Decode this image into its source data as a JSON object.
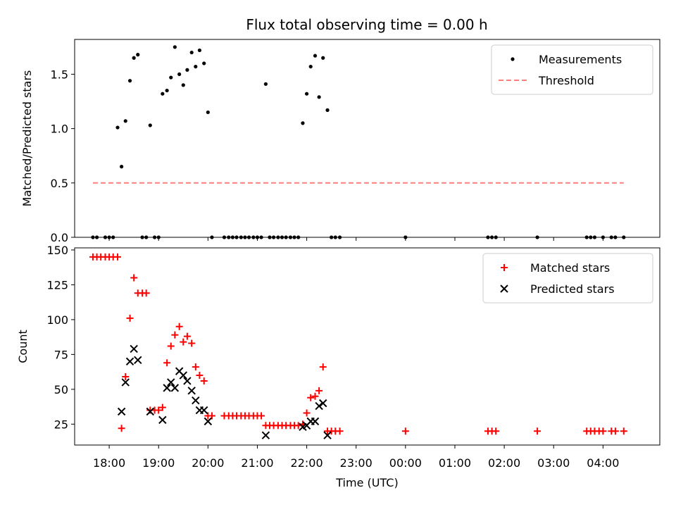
{
  "chart_data": [
    {
      "type": "scatter",
      "title": "Flux total observing time = 0.00 h",
      "xlabel": "",
      "ylabel": "Matched/Predicted stars",
      "ylim": [
        0,
        1.82
      ],
      "yticks": [
        "0.0",
        "0.5",
        "1.0",
        "1.5"
      ],
      "ytick_values": [
        0,
        0.5,
        1.0,
        1.5
      ],
      "xlim": [
        17.3,
        29.15
      ],
      "legend_placement": "top-right",
      "series": [
        {
          "name": "Measurements",
          "marker": "dot",
          "color": "#000000",
          "points": [
            [
              17.67,
              0
            ],
            [
              17.75,
              0
            ],
            [
              17.92,
              0
            ],
            [
              18.0,
              0
            ],
            [
              18.08,
              0
            ],
            [
              18.17,
              1.01
            ],
            [
              18.25,
              0.65
            ],
            [
              18.33,
              1.07
            ],
            [
              18.42,
              1.44
            ],
            [
              18.5,
              1.65
            ],
            [
              18.58,
              1.68
            ],
            [
              18.67,
              0
            ],
            [
              18.75,
              0
            ],
            [
              18.83,
              1.03
            ],
            [
              18.92,
              0
            ],
            [
              19.0,
              0
            ],
            [
              19.08,
              1.32
            ],
            [
              19.17,
              1.35
            ],
            [
              19.25,
              1.47
            ],
            [
              19.33,
              1.75
            ],
            [
              19.42,
              1.5
            ],
            [
              19.5,
              1.4
            ],
            [
              19.58,
              1.54
            ],
            [
              19.67,
              1.7
            ],
            [
              19.75,
              1.57
            ],
            [
              19.83,
              1.72
            ],
            [
              19.92,
              1.6
            ],
            [
              20.0,
              1.15
            ],
            [
              20.08,
              0
            ],
            [
              20.33,
              0
            ],
            [
              20.42,
              0
            ],
            [
              20.5,
              0
            ],
            [
              20.58,
              0
            ],
            [
              20.67,
              0
            ],
            [
              20.75,
              0
            ],
            [
              20.83,
              0
            ],
            [
              20.92,
              0
            ],
            [
              21.0,
              0
            ],
            [
              21.08,
              0
            ],
            [
              21.17,
              1.41
            ],
            [
              21.25,
              0
            ],
            [
              21.33,
              0
            ],
            [
              21.42,
              0
            ],
            [
              21.5,
              0
            ],
            [
              21.58,
              0
            ],
            [
              21.67,
              0
            ],
            [
              21.75,
              0
            ],
            [
              21.83,
              0
            ],
            [
              21.92,
              1.05
            ],
            [
              22.0,
              1.32
            ],
            [
              22.08,
              1.57
            ],
            [
              22.17,
              1.67
            ],
            [
              22.25,
              1.29
            ],
            [
              22.33,
              1.65
            ],
            [
              22.42,
              1.17
            ],
            [
              22.5,
              0
            ],
            [
              22.58,
              0
            ],
            [
              22.67,
              0
            ],
            [
              24.0,
              0
            ],
            [
              25.67,
              0
            ],
            [
              25.75,
              0
            ],
            [
              25.83,
              0
            ],
            [
              26.67,
              0
            ],
            [
              27.67,
              0
            ],
            [
              27.75,
              0
            ],
            [
              27.83,
              0
            ],
            [
              28.0,
              0
            ],
            [
              28.17,
              0
            ],
            [
              28.25,
              0
            ],
            [
              28.42,
              0
            ]
          ]
        },
        {
          "name": "Threshold",
          "style": "dashed",
          "color": "#ff7f7f",
          "points": [
            [
              17.67,
              0.5
            ],
            [
              28.42,
              0.5
            ]
          ]
        }
      ]
    },
    {
      "type": "scatter",
      "title": "",
      "xlabel": "Time (UTC)",
      "ylabel": "Count",
      "ylim": [
        10,
        151.5
      ],
      "yticks": [
        "25",
        "50",
        "75",
        "100",
        "125",
        "150"
      ],
      "ytick_values": [
        25,
        50,
        75,
        100,
        125,
        150
      ],
      "xlim": [
        17.3,
        29.15
      ],
      "xticks": [
        "18:00",
        "19:00",
        "20:00",
        "21:00",
        "22:00",
        "23:00",
        "00:00",
        "01:00",
        "02:00",
        "03:00",
        "04:00"
      ],
      "xtick_values": [
        18,
        19,
        20,
        21,
        22,
        23,
        24,
        25,
        26,
        27,
        28
      ],
      "legend_placement": "top-right",
      "series": [
        {
          "name": "Matched stars",
          "marker": "plus",
          "color": "#ff0000",
          "points": [
            [
              17.67,
              145
            ],
            [
              17.75,
              145
            ],
            [
              17.83,
              145
            ],
            [
              17.92,
              145
            ],
            [
              18.0,
              145
            ],
            [
              18.08,
              145
            ],
            [
              18.17,
              145
            ],
            [
              18.25,
              22
            ],
            [
              18.33,
              59
            ],
            [
              18.42,
              101
            ],
            [
              18.5,
              130
            ],
            [
              18.58,
              119
            ],
            [
              18.67,
              119
            ],
            [
              18.75,
              119
            ],
            [
              18.83,
              35
            ],
            [
              18.92,
              35
            ],
            [
              19.0,
              35
            ],
            [
              19.08,
              37
            ],
            [
              19.17,
              69
            ],
            [
              19.25,
              81
            ],
            [
              19.33,
              89
            ],
            [
              19.42,
              95
            ],
            [
              19.5,
              84
            ],
            [
              19.58,
              88
            ],
            [
              19.67,
              83
            ],
            [
              19.75,
              66
            ],
            [
              19.83,
              60
            ],
            [
              19.92,
              56
            ],
            [
              20.0,
              31
            ],
            [
              20.08,
              31
            ],
            [
              20.33,
              31
            ],
            [
              20.42,
              31
            ],
            [
              20.5,
              31
            ],
            [
              20.58,
              31
            ],
            [
              20.67,
              31
            ],
            [
              20.75,
              31
            ],
            [
              20.83,
              31
            ],
            [
              20.92,
              31
            ],
            [
              21.0,
              31
            ],
            [
              21.08,
              31
            ],
            [
              21.17,
              24
            ],
            [
              21.25,
              24
            ],
            [
              21.33,
              24
            ],
            [
              21.42,
              24
            ],
            [
              21.5,
              24
            ],
            [
              21.58,
              24
            ],
            [
              21.67,
              24
            ],
            [
              21.75,
              24
            ],
            [
              21.83,
              24
            ],
            [
              21.92,
              25
            ],
            [
              22.0,
              33
            ],
            [
              22.08,
              44
            ],
            [
              22.17,
              45
            ],
            [
              22.25,
              49
            ],
            [
              22.33,
              66
            ],
            [
              22.42,
              20
            ],
            [
              22.5,
              20
            ],
            [
              22.58,
              20
            ],
            [
              22.67,
              20
            ],
            [
              24.0,
              20
            ],
            [
              25.67,
              20
            ],
            [
              25.75,
              20
            ],
            [
              25.83,
              20
            ],
            [
              26.67,
              20
            ],
            [
              27.67,
              20
            ],
            [
              27.75,
              20
            ],
            [
              27.83,
              20
            ],
            [
              27.92,
              20
            ],
            [
              28.0,
              20
            ],
            [
              28.17,
              20
            ],
            [
              28.25,
              20
            ],
            [
              28.42,
              20
            ]
          ]
        },
        {
          "name": "Predicted stars",
          "marker": "x",
          "color": "#000000",
          "points": [
            [
              18.25,
              34
            ],
            [
              18.33,
              55
            ],
            [
              18.42,
              70
            ],
            [
              18.5,
              79
            ],
            [
              18.58,
              71
            ],
            [
              18.83,
              34
            ],
            [
              19.08,
              28
            ],
            [
              19.17,
              51
            ],
            [
              19.25,
              55
            ],
            [
              19.33,
              51
            ],
            [
              19.42,
              63
            ],
            [
              19.5,
              60
            ],
            [
              19.58,
              56
            ],
            [
              19.67,
              49
            ],
            [
              19.75,
              42
            ],
            [
              19.83,
              35
            ],
            [
              19.92,
              35
            ],
            [
              20.0,
              27
            ],
            [
              21.17,
              17
            ],
            [
              21.92,
              23
            ],
            [
              22.0,
              24
            ],
            [
              22.08,
              27
            ],
            [
              22.17,
              27
            ],
            [
              22.25,
              38
            ],
            [
              22.33,
              40
            ],
            [
              22.42,
              17
            ]
          ]
        }
      ]
    }
  ]
}
